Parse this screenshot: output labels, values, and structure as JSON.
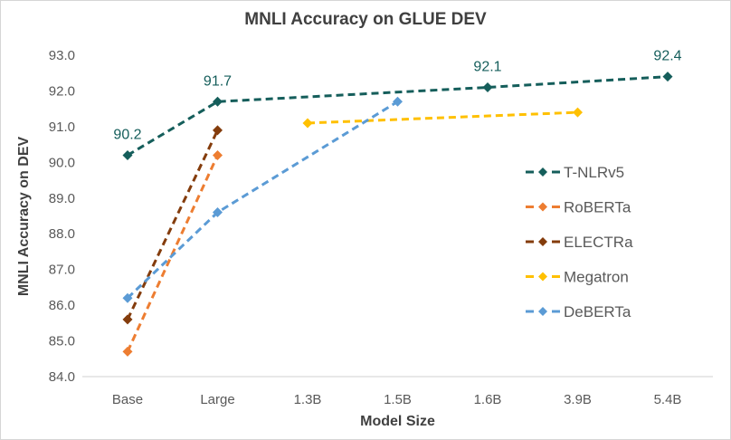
{
  "chart_data": {
    "type": "line",
    "title": "MNLI Accuracy on GLUE DEV",
    "xlabel": "Model Size",
    "ylabel": "MNLI Accuracy on DEV",
    "categories": [
      "Base",
      "Large",
      "1.3B",
      "1.5B",
      "1.6B",
      "3.9B",
      "5.4B"
    ],
    "ylim": [
      84.0,
      93.0
    ],
    "y_ticks": [
      "84.0",
      "85.0",
      "86.0",
      "87.0",
      "88.0",
      "89.0",
      "90.0",
      "91.0",
      "92.0",
      "93.0"
    ],
    "grid": false,
    "legend_position": "right",
    "line_style": "dashed",
    "marker": "diamond",
    "axis_line_color": "#d9d9d9",
    "tick_label_color": "#595959",
    "legend_text_color": "#595959",
    "series": [
      {
        "name": "T-NLRv5",
        "color": "#155e5b",
        "points": [
          {
            "x": "Base",
            "y": 90.2,
            "label": "90.2"
          },
          {
            "x": "Large",
            "y": 91.7,
            "label": "91.7"
          },
          {
            "x": "1.6B",
            "y": 92.1,
            "label": "92.1"
          },
          {
            "x": "5.4B",
            "y": 92.4,
            "label": "92.4"
          }
        ]
      },
      {
        "name": "RoBERTa",
        "color": "#ed7d31",
        "points": [
          {
            "x": "Base",
            "y": 84.7
          },
          {
            "x": "Large",
            "y": 90.2
          }
        ]
      },
      {
        "name": "ELECTRa",
        "color": "#843c0c",
        "points": [
          {
            "x": "Base",
            "y": 85.6
          },
          {
            "x": "Large",
            "y": 90.9
          }
        ]
      },
      {
        "name": "Megatron",
        "color": "#ffc000",
        "points": [
          {
            "x": "1.3B",
            "y": 91.1
          },
          {
            "x": "3.9B",
            "y": 91.4
          }
        ]
      },
      {
        "name": "DeBERTa",
        "color": "#5b9bd5",
        "points": [
          {
            "x": "Base",
            "y": 86.2
          },
          {
            "x": "Large",
            "y": 88.6
          },
          {
            "x": "1.5B",
            "y": 91.7
          }
        ]
      }
    ]
  }
}
